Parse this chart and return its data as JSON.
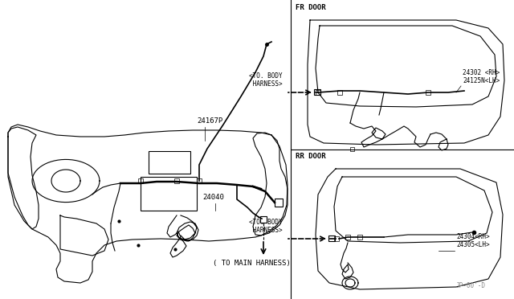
{
  "bg_color": "#ffffff",
  "line_color": "#000000",
  "gray_color": "#888888",
  "label_font": 5.5,
  "label_font2": 6.5,
  "fr_door_label": "FR DOOR",
  "rr_door_label": "RR DOOR",
  "part_24167P": "24167P",
  "part_24040": "24040",
  "to_main_harness": "( TO MAIN HARNESS)",
  "to_body_harness_fr": "<TO. BODY\n HARNESS>",
  "to_body_harness_rr": "<TO. BODY\n HARNESS>",
  "fr_parts": "24302 <RH>\n24125N<LH>",
  "rr_parts": "24304<RH>\n24305<LH>",
  "watermark": "JP-00'-D"
}
